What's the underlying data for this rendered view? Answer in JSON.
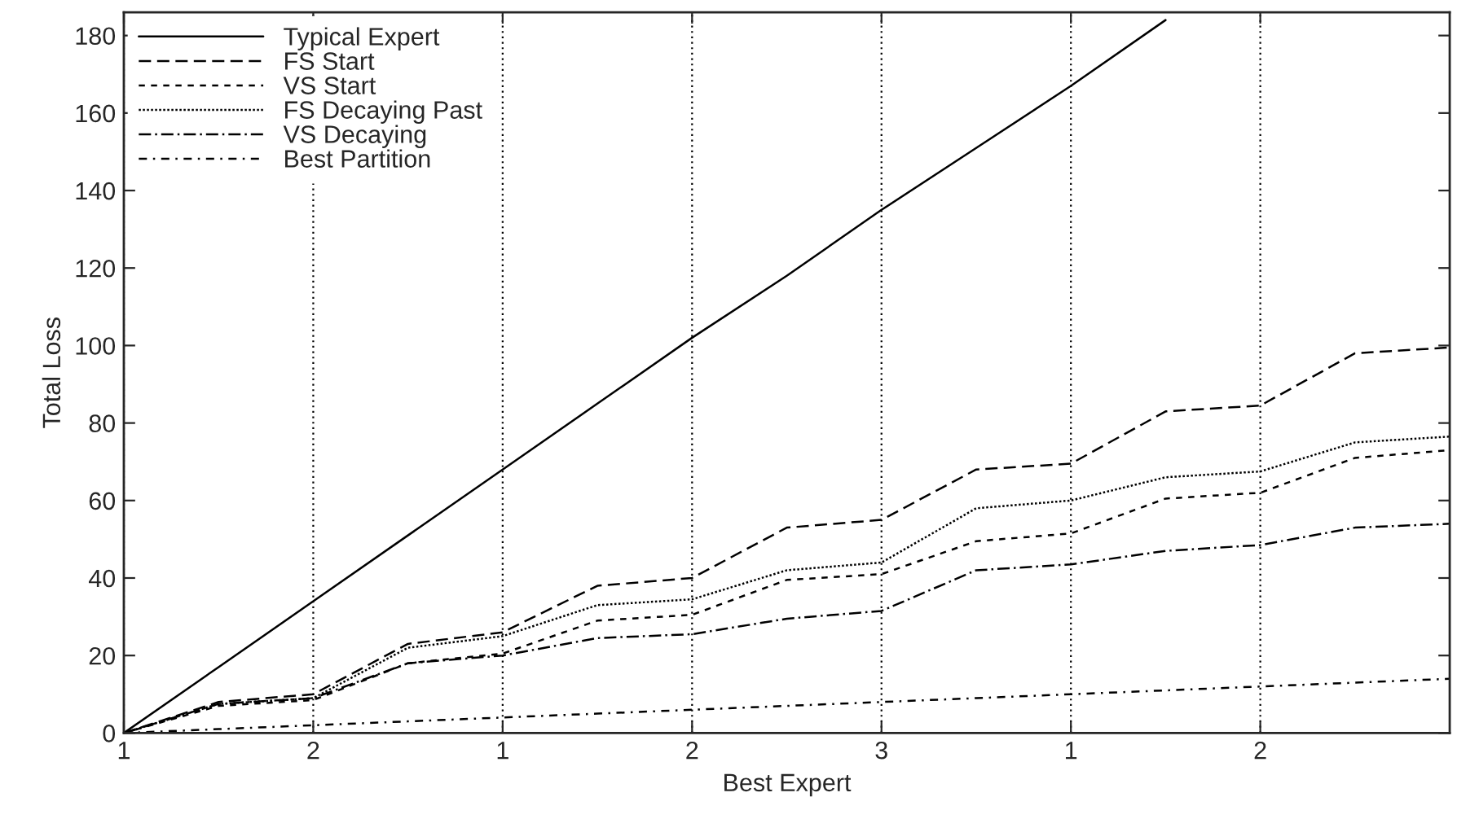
{
  "chart_data": {
    "type": "line",
    "xlabel": "Best Expert",
    "ylabel": "Total Loss",
    "categories": [
      "1",
      null,
      "2",
      null,
      "1",
      null,
      "2",
      null,
      "3",
      null,
      "1",
      null,
      "2",
      null,
      null
    ],
    "ylim": [
      0,
      186
    ],
    "yticks": [
      0,
      20,
      40,
      60,
      80,
      100,
      120,
      140,
      160,
      180
    ],
    "grid": "x",
    "legend": "top left",
    "series": [
      {
        "name": "Typical Expert",
        "color": "#000000",
        "line_style": "solid",
        "values": [
          0,
          17,
          34,
          51,
          68,
          85,
          102,
          118,
          135,
          151,
          167,
          184,
          null,
          null,
          null
        ]
      },
      {
        "name": "FS Start",
        "color": "#000000",
        "line_style": "dashed",
        "values": [
          0,
          8,
          10,
          23,
          26,
          38,
          40,
          53,
          55,
          68,
          69.5,
          83,
          84.5,
          98,
          99.5
        ]
      },
      {
        "name": "VS Start",
        "color": "#000000",
        "line_style": "dashed_short",
        "values": [
          0,
          7,
          8.5,
          18,
          20.5,
          29,
          30.5,
          39.5,
          41,
          49.5,
          51.5,
          60.5,
          62,
          71,
          73
        ]
      },
      {
        "name": "FS Decaying Past",
        "color": "#000000",
        "line_style": "dotted",
        "values": [
          0,
          7.5,
          9,
          22,
          25,
          33,
          34.5,
          42,
          44,
          58,
          60,
          66,
          67.5,
          75,
          76.5
        ]
      },
      {
        "name": "VS Decaying",
        "color": "#000000",
        "line_style": "dashdot",
        "values": [
          0,
          7.5,
          9,
          18,
          20,
          24.5,
          25.5,
          29.5,
          31.5,
          42,
          43.5,
          47,
          48.5,
          53,
          54
        ]
      },
      {
        "name": "Best Partition",
        "color": "#000000",
        "line_style": "dashdotdot",
        "values": [
          0,
          1,
          2,
          3,
          4,
          5,
          6,
          7,
          8,
          9,
          10,
          11,
          12,
          13,
          14
        ]
      }
    ]
  }
}
